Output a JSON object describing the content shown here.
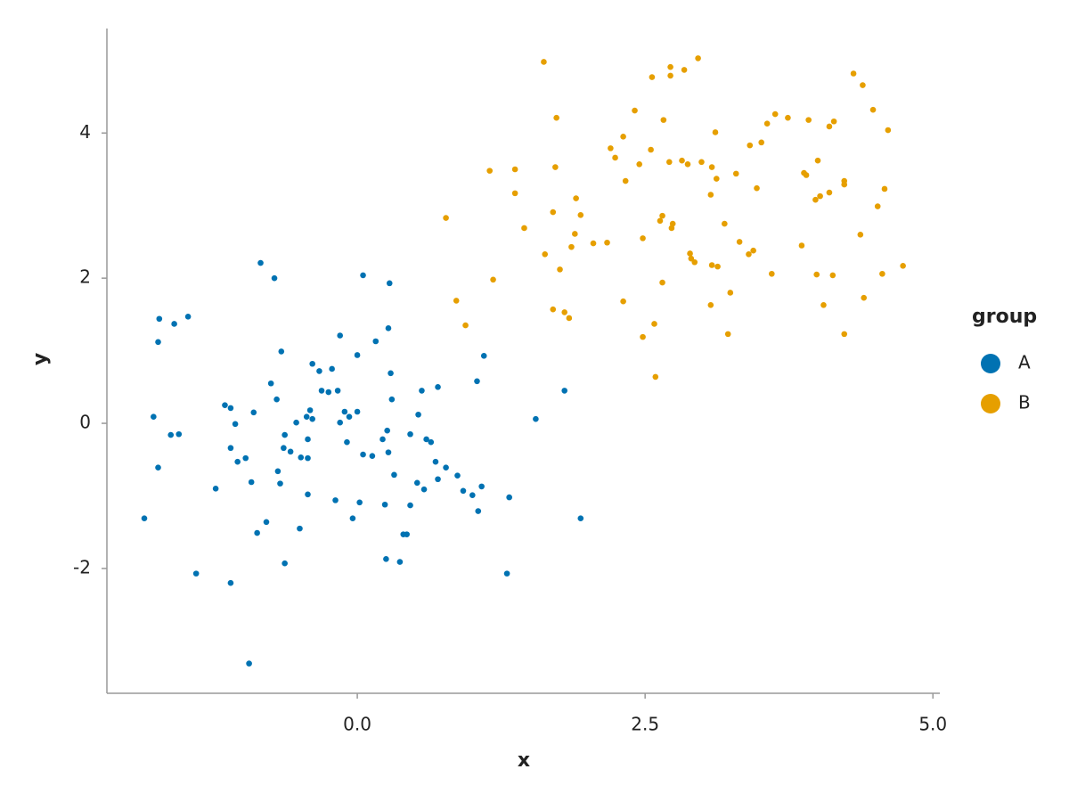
{
  "chart_data": {
    "type": "scatter",
    "xlabel": "x",
    "ylabel": "y",
    "legend_title": "group",
    "legend": "right",
    "xlim": [
      -2.175,
      5.06
    ],
    "ylim": [
      -3.72,
      5.44
    ],
    "xticks": [
      {
        "value": 0,
        "label": "0.0"
      },
      {
        "value": 2.5,
        "label": "2.5"
      },
      {
        "value": 5,
        "label": "5.0"
      }
    ],
    "yticks": [
      -2,
      0,
      2,
      4
    ],
    "series": [
      {
        "name": "A",
        "color": "#0072b2",
        "x": [
          -1.85,
          -1.77,
          -1.73,
          -1.72,
          -1.73,
          -1.62,
          -1.59,
          -1.55,
          -1.47,
          -1.4,
          -1.23,
          -1.15,
          -1.1,
          -1.1,
          -1.1,
          -1.06,
          -1.04,
          -0.97,
          -0.94,
          -0.92,
          -0.9,
          -0.87,
          -0.84,
          -0.79,
          -0.75,
          -0.72,
          -0.7,
          -0.69,
          -0.67,
          -0.66,
          -0.64,
          -0.63,
          -0.63,
          -0.58,
          -0.53,
          -0.5,
          -0.49,
          -0.44,
          -0.43,
          -0.43,
          -0.43,
          -0.41,
          -0.39,
          -0.39,
          -0.33,
          -0.31,
          -0.25,
          -0.22,
          -0.19,
          -0.17,
          -0.15,
          -0.15,
          -0.11,
          -0.09,
          -0.07,
          -0.04,
          0.0,
          0.0,
          0.02,
          0.05,
          0.05,
          0.13,
          0.16,
          0.22,
          0.24,
          0.25,
          0.26,
          0.27,
          0.27,
          0.28,
          0.29,
          0.3,
          0.32,
          0.37,
          0.4,
          0.43,
          0.46,
          0.46,
          0.52,
          0.53,
          0.56,
          0.58,
          0.6,
          0.64,
          0.68,
          0.7,
          0.7,
          0.77,
          0.87,
          0.92,
          1.0,
          1.04,
          1.05,
          1.08,
          1.1,
          1.3,
          1.32,
          1.55,
          1.8,
          1.94
        ],
        "values": [
          -1.31,
          0.09,
          1.12,
          1.44,
          -0.61,
          -0.16,
          1.37,
          -0.15,
          1.47,
          -2.07,
          -0.9,
          0.25,
          0.21,
          -2.2,
          -0.34,
          -0.01,
          -0.53,
          -0.48,
          -3.31,
          -0.81,
          0.15,
          -1.51,
          2.21,
          -1.36,
          0.55,
          2.0,
          0.33,
          -0.66,
          -0.83,
          0.99,
          -0.34,
          -0.16,
          -1.93,
          -0.39,
          0.01,
          -1.45,
          -0.47,
          0.09,
          -0.98,
          -0.22,
          -0.48,
          0.18,
          0.06,
          0.82,
          0.72,
          0.45,
          0.43,
          0.75,
          -1.06,
          0.45,
          0.01,
          1.21,
          0.16,
          -0.26,
          0.09,
          -1.31,
          0.94,
          0.16,
          -1.09,
          -0.43,
          2.04,
          -0.45,
          1.13,
          -0.22,
          -1.12,
          -1.87,
          -0.1,
          -0.4,
          1.31,
          1.93,
          0.69,
          0.33,
          -0.71,
          -1.91,
          -1.53,
          -1.53,
          -0.15,
          -1.13,
          -0.82,
          0.12,
          0.45,
          -0.91,
          -0.22,
          -0.26,
          -0.53,
          -0.77,
          0.5,
          -0.61,
          -0.72,
          -0.93,
          -0.99,
          0.58,
          -1.21,
          -0.87,
          0.93,
          -2.07,
          -1.02,
          0.06,
          0.45,
          -1.31
        ]
      },
      {
        "name": "B",
        "color": "#e69f00",
        "x": [
          0.77,
          0.86,
          0.94,
          1.15,
          1.18,
          1.37,
          1.37,
          1.45,
          1.62,
          1.63,
          1.7,
          1.7,
          1.72,
          1.73,
          1.76,
          1.8,
          1.84,
          1.86,
          1.89,
          1.9,
          1.94,
          2.05,
          2.17,
          2.2,
          2.24,
          2.31,
          2.31,
          2.33,
          2.41,
          2.45,
          2.48,
          2.48,
          2.55,
          2.56,
          2.58,
          2.59,
          2.63,
          2.65,
          2.65,
          2.66,
          2.71,
          2.72,
          2.72,
          2.73,
          2.74,
          2.82,
          2.84,
          2.87,
          2.89,
          2.9,
          2.93,
          2.96,
          2.99,
          3.07,
          3.07,
          3.08,
          3.08,
          3.11,
          3.12,
          3.13,
          3.19,
          3.22,
          3.24,
          3.29,
          3.32,
          3.4,
          3.41,
          3.44,
          3.47,
          3.51,
          3.56,
          3.6,
          3.63,
          3.74,
          3.86,
          3.88,
          3.9,
          3.92,
          3.98,
          3.99,
          4.0,
          4.02,
          4.05,
          4.1,
          4.1,
          4.13,
          4.14,
          4.23,
          4.23,
          4.23,
          4.31,
          4.37,
          4.39,
          4.4,
          4.48,
          4.52,
          4.56,
          4.58,
          4.61,
          4.74
        ],
        "values": [
          2.83,
          1.69,
          1.35,
          3.48,
          1.98,
          3.5,
          3.17,
          2.69,
          4.98,
          2.33,
          2.91,
          1.57,
          3.53,
          4.21,
          2.12,
          1.53,
          1.45,
          2.43,
          2.61,
          3.1,
          2.87,
          2.48,
          2.49,
          3.79,
          3.66,
          1.68,
          3.95,
          3.34,
          4.31,
          3.57,
          2.55,
          1.19,
          3.77,
          4.77,
          1.37,
          0.64,
          2.79,
          2.86,
          1.94,
          4.18,
          3.6,
          4.79,
          4.91,
          2.69,
          2.75,
          3.62,
          4.87,
          3.57,
          2.34,
          2.27,
          2.22,
          5.03,
          3.6,
          3.15,
          1.63,
          3.53,
          2.18,
          4.01,
          3.37,
          2.16,
          2.75,
          1.23,
          1.8,
          3.44,
          2.5,
          2.33,
          3.83,
          2.38,
          3.24,
          3.87,
          4.13,
          2.06,
          4.26,
          4.21,
          2.45,
          3.45,
          3.42,
          4.18,
          3.08,
          2.05,
          3.62,
          3.13,
          1.63,
          3.18,
          4.09,
          2.04,
          4.16,
          3.34,
          1.23,
          3.29,
          4.82,
          2.6,
          4.66,
          1.73,
          4.32,
          2.99,
          2.06,
          3.23,
          4.04,
          2.17
        ]
      }
    ]
  }
}
